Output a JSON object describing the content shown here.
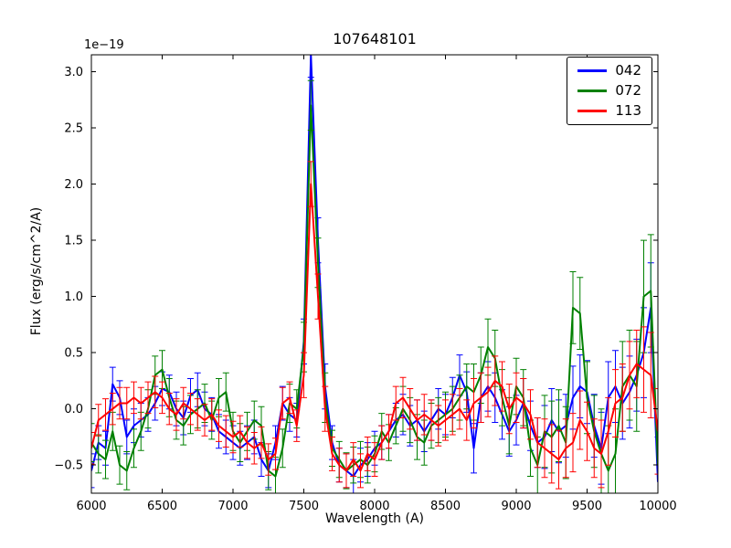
{
  "chart_data": {
    "type": "line",
    "title": "107648101",
    "xlabel": "Wavelength (A)",
    "ylabel": "Flux (erg/s/cm^2/A)",
    "y_scale_label": "1e−19",
    "xlim": [
      6000,
      10000
    ],
    "ylim": [
      -0.75,
      3.15
    ],
    "xticks": [
      6000,
      6500,
      7000,
      7500,
      8000,
      8500,
      9000,
      9500,
      10000
    ],
    "yticks": [
      -0.5,
      0.0,
      0.5,
      1.0,
      1.5,
      2.0,
      2.5,
      3.0
    ],
    "grid": false,
    "error_bars": true,
    "legend_position": "upper right",
    "x": [
      6000,
      6050,
      6100,
      6150,
      6200,
      6250,
      6300,
      6350,
      6400,
      6450,
      6500,
      6550,
      6600,
      6650,
      6700,
      6750,
      6800,
      6850,
      6900,
      6950,
      7000,
      7050,
      7100,
      7150,
      7200,
      7250,
      7300,
      7350,
      7400,
      7450,
      7500,
      7550,
      7600,
      7650,
      7700,
      7750,
      7800,
      7850,
      7900,
      7950,
      8000,
      8050,
      8100,
      8150,
      8200,
      8250,
      8300,
      8350,
      8400,
      8450,
      8500,
      8550,
      8600,
      8650,
      8700,
      8750,
      8800,
      8850,
      8900,
      8950,
      9000,
      9050,
      9100,
      9150,
      9200,
      9250,
      9300,
      9350,
      9400,
      9450,
      9500,
      9550,
      9600,
      9650,
      9700,
      9750,
      9800,
      9850,
      9900,
      9950,
      10000
    ],
    "series": [
      {
        "name": "042",
        "color": "#0000ff",
        "values": [
          -0.55,
          -0.3,
          -0.35,
          0.22,
          0.1,
          -0.25,
          -0.15,
          -0.1,
          -0.05,
          0.05,
          0.18,
          0.15,
          0.0,
          -0.08,
          0.12,
          0.17,
          0.0,
          -0.05,
          -0.2,
          -0.25,
          -0.3,
          -0.35,
          -0.3,
          -0.25,
          -0.45,
          -0.55,
          -0.3,
          0.05,
          -0.05,
          -0.1,
          0.6,
          3.15,
          1.5,
          0.2,
          -0.3,
          -0.5,
          -0.55,
          -0.6,
          -0.5,
          -0.45,
          -0.35,
          -0.3,
          -0.2,
          -0.1,
          -0.05,
          -0.15,
          -0.1,
          -0.2,
          -0.1,
          0.0,
          -0.05,
          0.1,
          0.3,
          0.15,
          -0.35,
          0.1,
          0.2,
          0.1,
          -0.05,
          -0.2,
          -0.1,
          0.05,
          -0.15,
          -0.3,
          -0.25,
          -0.1,
          -0.2,
          -0.15,
          0.1,
          0.2,
          0.15,
          -0.15,
          -0.35,
          0.1,
          0.2,
          0.05,
          0.15,
          0.3,
          0.5,
          0.9,
          -0.65
        ],
        "yerr": [
          0.15,
          0.15,
          0.15,
          0.15,
          0.15,
          0.15,
          0.15,
          0.15,
          0.15,
          0.15,
          0.15,
          0.15,
          0.15,
          0.15,
          0.15,
          0.15,
          0.15,
          0.15,
          0.15,
          0.15,
          0.15,
          0.15,
          0.15,
          0.15,
          0.15,
          0.15,
          0.15,
          0.15,
          0.15,
          0.15,
          0.2,
          0.2,
          0.2,
          0.2,
          0.15,
          0.15,
          0.15,
          0.15,
          0.15,
          0.15,
          0.15,
          0.15,
          0.15,
          0.15,
          0.18,
          0.18,
          0.18,
          0.18,
          0.18,
          0.18,
          0.18,
          0.18,
          0.18,
          0.18,
          0.22,
          0.22,
          0.22,
          0.22,
          0.22,
          0.22,
          0.22,
          0.22,
          0.22,
          0.22,
          0.28,
          0.28,
          0.28,
          0.28,
          0.28,
          0.28,
          0.28,
          0.28,
          0.32,
          0.32,
          0.32,
          0.32,
          0.32,
          0.32,
          0.4,
          0.4,
          0.4
        ]
      },
      {
        "name": "072",
        "color": "#008000",
        "values": [
          -0.3,
          -0.4,
          -0.45,
          -0.2,
          -0.5,
          -0.55,
          -0.35,
          -0.2,
          0.0,
          0.3,
          0.35,
          0.1,
          -0.1,
          -0.15,
          -0.05,
          0.0,
          0.05,
          -0.1,
          0.1,
          0.15,
          -0.2,
          -0.3,
          -0.2,
          -0.1,
          -0.15,
          -0.55,
          -0.6,
          -0.35,
          0.05,
          0.0,
          0.55,
          2.7,
          1.3,
          0.1,
          -0.35,
          -0.45,
          -0.55,
          -0.5,
          -0.45,
          -0.5,
          -0.4,
          -0.2,
          -0.3,
          -0.15,
          0.0,
          -0.1,
          -0.25,
          -0.3,
          -0.15,
          -0.1,
          -0.05,
          0.0,
          0.1,
          0.2,
          0.15,
          0.3,
          0.55,
          0.45,
          0.1,
          -0.15,
          0.2,
          0.1,
          -0.35,
          -0.5,
          -0.2,
          -0.25,
          -0.15,
          -0.3,
          0.9,
          0.85,
          0.1,
          -0.2,
          -0.4,
          -0.55,
          -0.4,
          0.2,
          0.3,
          0.2,
          1.0,
          1.05,
          -0.5
        ],
        "yerr": [
          0.17,
          0.17,
          0.17,
          0.17,
          0.17,
          0.17,
          0.17,
          0.17,
          0.17,
          0.17,
          0.17,
          0.17,
          0.17,
          0.17,
          0.17,
          0.17,
          0.17,
          0.17,
          0.17,
          0.17,
          0.17,
          0.17,
          0.17,
          0.17,
          0.17,
          0.17,
          0.17,
          0.17,
          0.17,
          0.17,
          0.22,
          0.22,
          0.22,
          0.22,
          0.16,
          0.16,
          0.16,
          0.16,
          0.16,
          0.16,
          0.16,
          0.16,
          0.16,
          0.16,
          0.2,
          0.2,
          0.2,
          0.2,
          0.2,
          0.2,
          0.2,
          0.2,
          0.2,
          0.2,
          0.25,
          0.25,
          0.25,
          0.25,
          0.25,
          0.25,
          0.25,
          0.25,
          0.25,
          0.25,
          0.32,
          0.32,
          0.32,
          0.32,
          0.32,
          0.32,
          0.32,
          0.32,
          0.4,
          0.4,
          0.4,
          0.4,
          0.4,
          0.4,
          0.5,
          0.5,
          0.5
        ]
      },
      {
        "name": "113",
        "color": "#ff0000",
        "values": [
          -0.35,
          -0.1,
          -0.05,
          0.0,
          0.05,
          0.05,
          0.1,
          0.05,
          0.1,
          0.15,
          0.1,
          0.0,
          -0.05,
          0.05,
          0.0,
          -0.05,
          -0.1,
          -0.05,
          -0.15,
          -0.2,
          -0.25,
          -0.2,
          -0.3,
          -0.35,
          -0.3,
          -0.45,
          -0.4,
          0.05,
          0.1,
          -0.15,
          0.3,
          2.0,
          1.0,
          0.0,
          -0.4,
          -0.5,
          -0.55,
          -0.45,
          -0.55,
          -0.4,
          -0.45,
          -0.3,
          -0.2,
          0.05,
          0.1,
          0.0,
          -0.1,
          -0.05,
          -0.1,
          -0.15,
          -0.1,
          -0.05,
          0.0,
          -0.1,
          0.05,
          0.1,
          0.15,
          0.25,
          0.2,
          0.0,
          0.1,
          0.05,
          -0.05,
          -0.3,
          -0.35,
          -0.4,
          -0.45,
          -0.35,
          -0.3,
          -0.1,
          -0.2,
          -0.35,
          -0.4,
          -0.2,
          0.05,
          0.1,
          0.3,
          0.4,
          0.35,
          0.3,
          -0.2
        ],
        "yerr": [
          0.14,
          0.14,
          0.14,
          0.14,
          0.14,
          0.14,
          0.14,
          0.14,
          0.14,
          0.14,
          0.14,
          0.14,
          0.14,
          0.14,
          0.14,
          0.14,
          0.14,
          0.14,
          0.14,
          0.14,
          0.14,
          0.14,
          0.14,
          0.14,
          0.14,
          0.14,
          0.14,
          0.14,
          0.14,
          0.14,
          0.2,
          0.2,
          0.2,
          0.2,
          0.15,
          0.15,
          0.15,
          0.15,
          0.15,
          0.15,
          0.15,
          0.15,
          0.15,
          0.15,
          0.18,
          0.18,
          0.18,
          0.18,
          0.18,
          0.18,
          0.18,
          0.18,
          0.18,
          0.18,
          0.22,
          0.22,
          0.22,
          0.22,
          0.22,
          0.22,
          0.22,
          0.22,
          0.22,
          0.22,
          0.26,
          0.26,
          0.26,
          0.26,
          0.26,
          0.26,
          0.26,
          0.26,
          0.3,
          0.3,
          0.3,
          0.3,
          0.3,
          0.3,
          0.38,
          0.38,
          0.38
        ]
      }
    ]
  }
}
